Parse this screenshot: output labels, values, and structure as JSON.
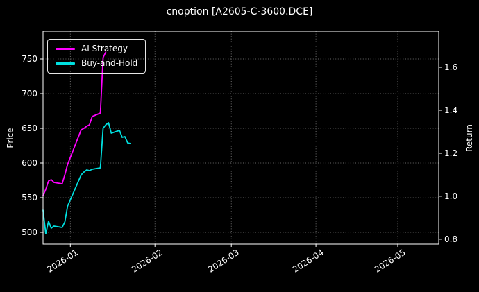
{
  "figure": {
    "background": "#000000",
    "text_color": "#ffffff",
    "spine_color": "#ffffff",
    "grid_color": "#8a8a8a"
  },
  "chart_data": {
    "type": "line",
    "title": "cnoption [A2605-C-3600.DCE]",
    "ylabel_left": "Price",
    "ylabel_right": "Return",
    "x_domain": [
      "2025-12-22",
      "2026-05-16"
    ],
    "x_ticks": [
      {
        "date": "2026-01-01",
        "label": "2026-01"
      },
      {
        "date": "2026-02-01",
        "label": "2026-02"
      },
      {
        "date": "2026-03-01",
        "label": "2026-03"
      },
      {
        "date": "2026-04-01",
        "label": "2026-04"
      },
      {
        "date": "2026-05-01",
        "label": "2026-05"
      }
    ],
    "y_left": {
      "lim": [
        483,
        790
      ],
      "ticks": [
        500,
        550,
        600,
        650,
        700,
        750
      ]
    },
    "y_right": {
      "lim": [
        0.777,
        1.768
      ],
      "ticks": [
        0.8,
        1.0,
        1.2,
        1.4,
        1.6
      ]
    },
    "grid": true,
    "legend": {
      "position": "upper-left"
    },
    "series": [
      {
        "name": "AI Strategy",
        "color": "#ff00ff",
        "axis": "left",
        "dates": [
          "2025-12-22",
          "2025-12-23",
          "2025-12-24",
          "2025-12-25",
          "2025-12-26",
          "2025-12-29",
          "2025-12-30",
          "2025-12-31",
          "2026-01-05",
          "2026-01-06",
          "2026-01-07",
          "2026-01-08",
          "2026-01-09",
          "2026-01-12",
          "2026-01-13",
          "2026-01-14"
        ],
        "values": [
          553,
          562,
          574,
          576,
          572,
          570,
          583,
          598,
          648,
          650,
          653,
          655,
          667,
          672,
          752,
          760
        ]
      },
      {
        "name": "Buy-and-Hold",
        "color": "#00e0e0",
        "axis": "left",
        "dates": [
          "2025-12-22",
          "2025-12-23",
          "2025-12-24",
          "2025-12-25",
          "2025-12-26",
          "2025-12-29",
          "2025-12-30",
          "2025-12-31",
          "2026-01-05",
          "2026-01-06",
          "2026-01-07",
          "2026-01-08",
          "2026-01-09",
          "2026-01-12",
          "2026-01-13",
          "2026-01-14",
          "2026-01-15",
          "2026-01-16",
          "2026-01-19",
          "2026-01-20",
          "2026-01-21",
          "2026-01-22",
          "2026-01-23"
        ],
        "values": [
          532,
          498,
          516,
          506,
          509,
          507,
          515,
          538,
          583,
          587,
          590,
          589,
          591,
          593,
          650,
          655,
          658,
          643,
          647,
          637,
          638,
          629,
          628
        ]
      }
    ]
  }
}
